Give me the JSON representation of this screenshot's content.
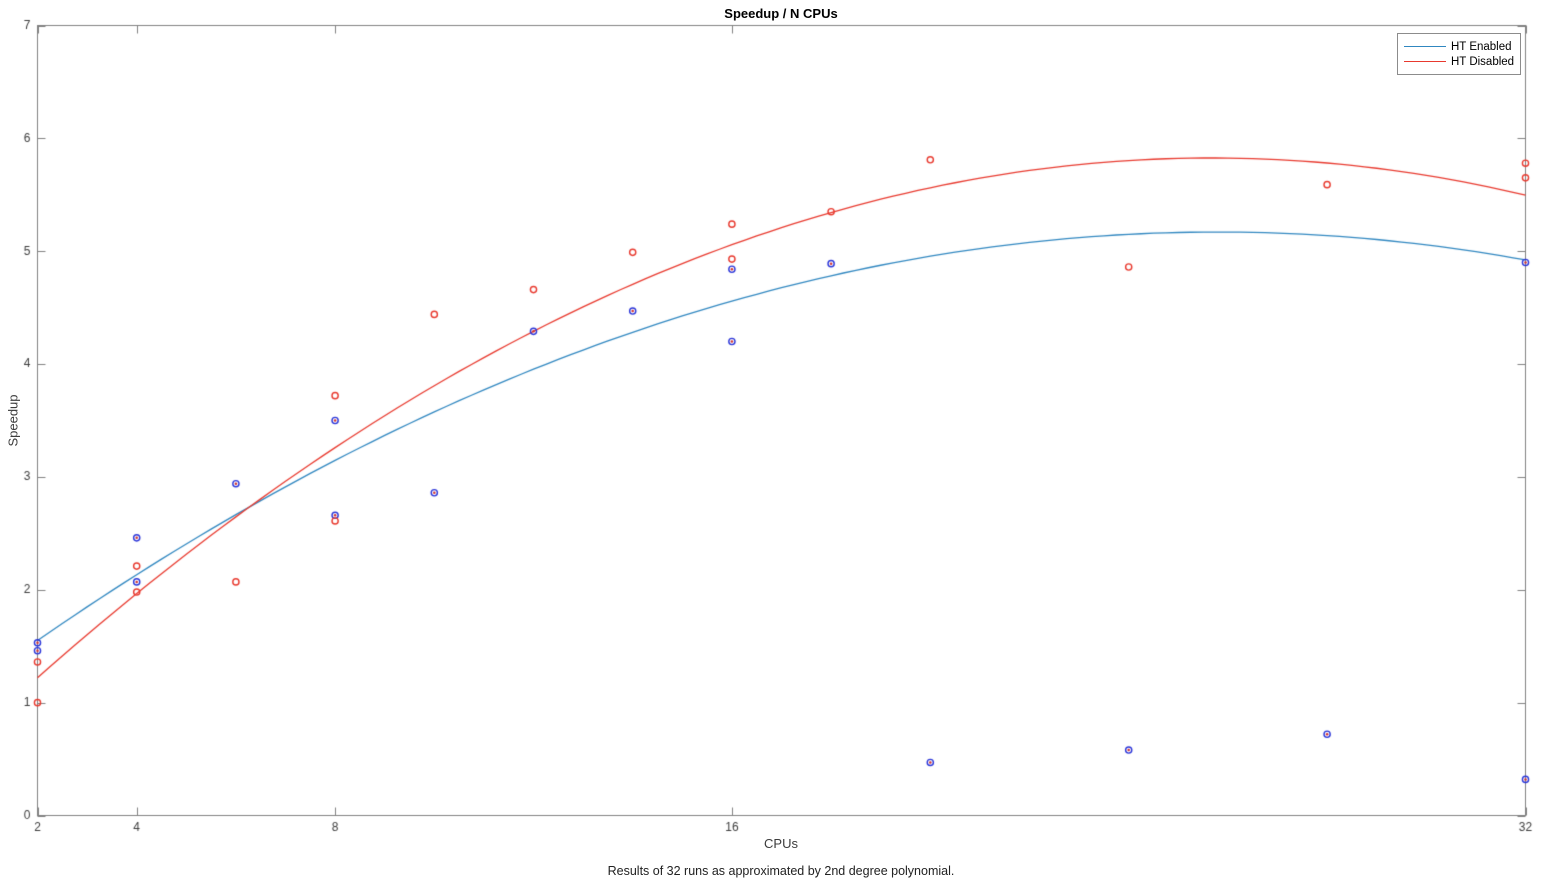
{
  "title": "Speedup / N CPUs",
  "xlabel": "CPUs",
  "ylabel": "Speedup",
  "caption": "Results of 32 runs as approximated by 2nd degree polynomial.",
  "colors": {
    "axis": "#808080",
    "tick_text": "#3c3c3c",
    "background": "#ffffff",
    "ht_enabled_line": "#3087c0",
    "ht_disabled_line": "#e8392e",
    "ht_enabled_marker": "#2b35d8",
    "ht_enabled_marker_center": "#d03030",
    "ht_disabled_marker": "#e8392e"
  },
  "chart_data": {
    "type": "scatter",
    "title": "Speedup / N CPUs",
    "xlabel": "CPUs",
    "ylabel": "Speedup",
    "caption": "Results of 32 runs as approximated by 2nd degree polynomial.",
    "xlim": [
      2,
      32
    ],
    "ylim": [
      0,
      7
    ],
    "x_ticks": [
      2,
      4,
      8,
      16,
      32
    ],
    "y_ticks": [
      0,
      1,
      2,
      3,
      4,
      5,
      6,
      7
    ],
    "x_scale": "linear",
    "grid": false,
    "legend_position": "top-right",
    "fit_note": "2nd degree polynomial",
    "series": [
      {
        "name": "HT Enabled",
        "line_color": "#3087c0",
        "marker_color": "#2b35d8",
        "marker_center_color": "#d03030",
        "marker": "circle-dot",
        "points": [
          [
            2,
            1.53
          ],
          [
            2,
            1.46
          ],
          [
            4,
            2.46
          ],
          [
            4,
            2.07
          ],
          [
            6,
            2.94
          ],
          [
            8,
            3.5
          ],
          [
            8,
            2.66
          ],
          [
            10,
            2.86
          ],
          [
            12,
            4.29
          ],
          [
            14,
            4.47
          ],
          [
            16,
            4.84
          ],
          [
            16,
            4.2
          ],
          [
            18,
            4.89
          ],
          [
            20,
            0.47
          ],
          [
            24,
            0.58
          ],
          [
            28,
            0.72
          ],
          [
            32,
            4.9
          ],
          [
            32,
            0.32
          ]
        ],
        "fit_poly": [
          0.916,
          0.33,
          -0.0064
        ]
      },
      {
        "name": "HT Disabled",
        "line_color": "#e8392e",
        "marker_color": "#e8392e",
        "marker_center_color": null,
        "marker": "circle",
        "points": [
          [
            2,
            1.36
          ],
          [
            2,
            1.0
          ],
          [
            4,
            2.21
          ],
          [
            4,
            1.98
          ],
          [
            6,
            2.07
          ],
          [
            8,
            3.72
          ],
          [
            8,
            2.61
          ],
          [
            10,
            4.44
          ],
          [
            12,
            4.66
          ],
          [
            14,
            4.99
          ],
          [
            16,
            5.24
          ],
          [
            16,
            4.93
          ],
          [
            18,
            5.35
          ],
          [
            20,
            5.81
          ],
          [
            24,
            4.86
          ],
          [
            28,
            5.59
          ],
          [
            32,
            5.78
          ],
          [
            32,
            5.65
          ]
        ],
        "fit_poly": [
          0.41,
          0.422,
          -0.00822
        ]
      }
    ]
  }
}
